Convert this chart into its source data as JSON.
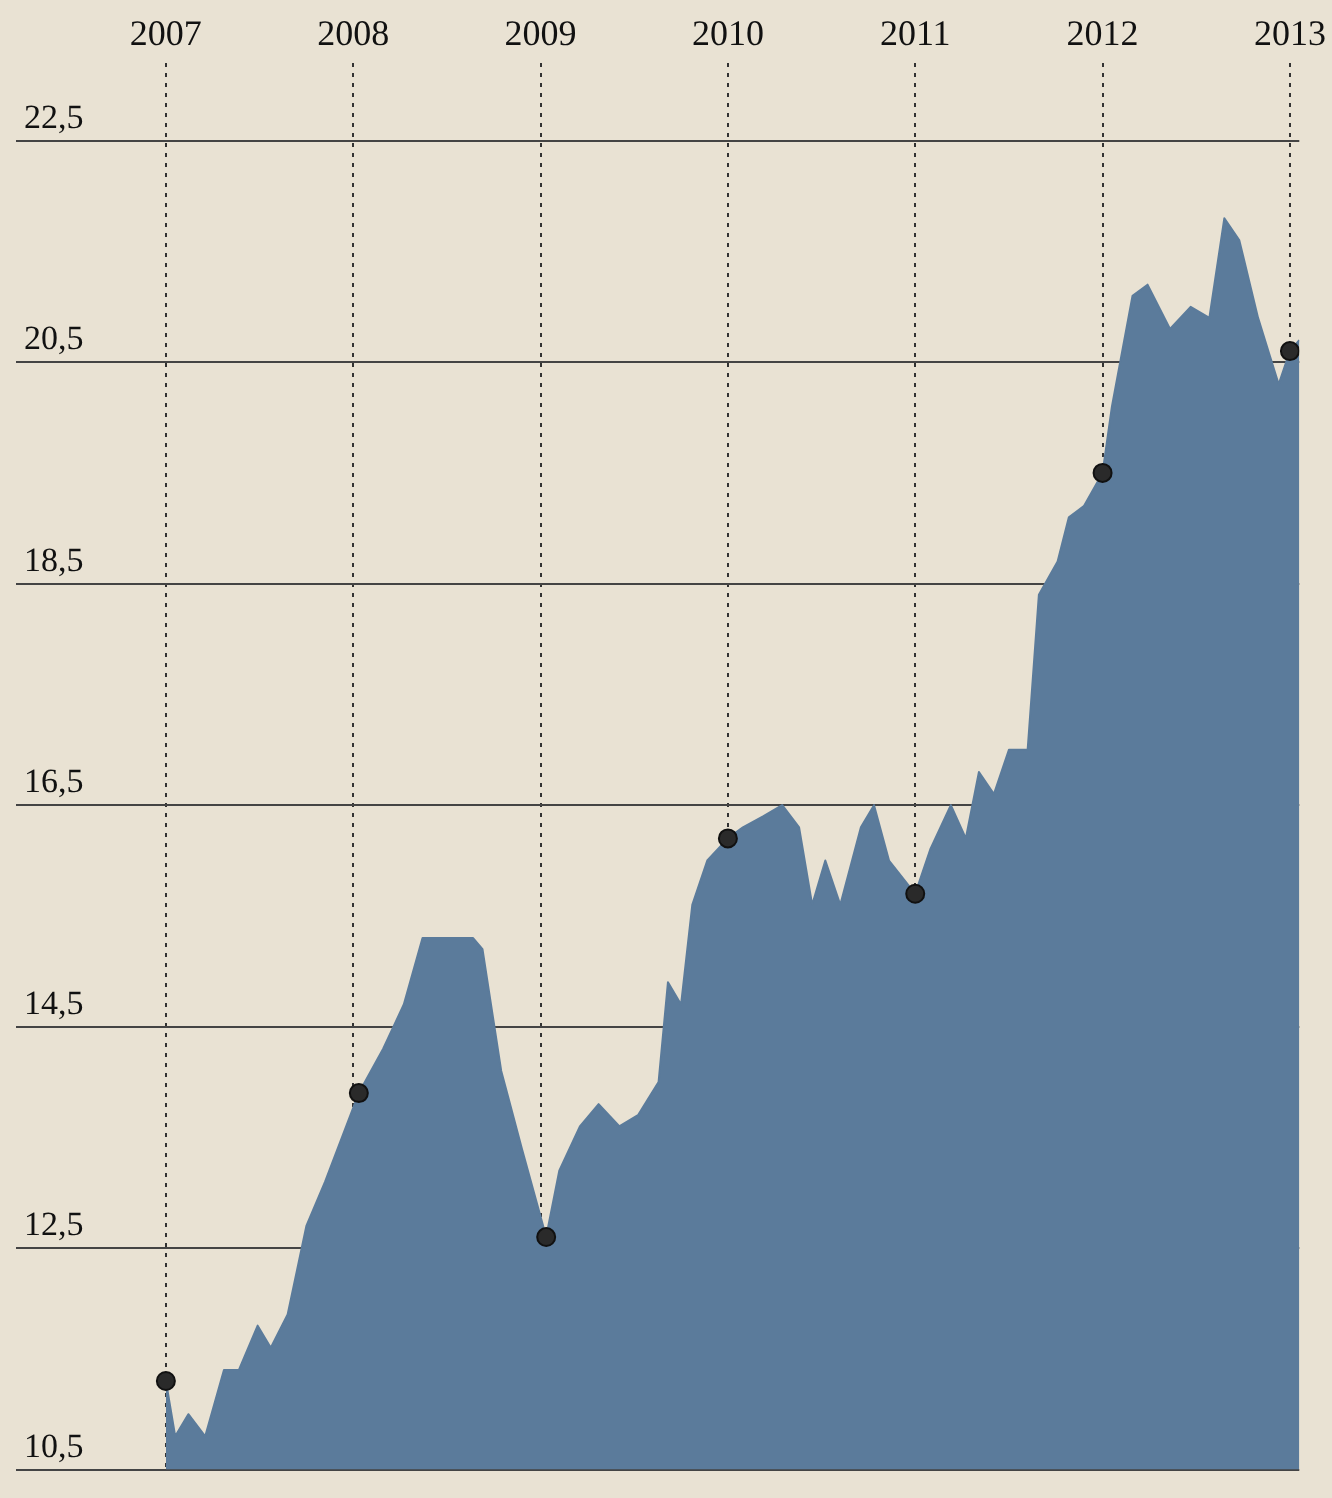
{
  "chart_data": {
    "type": "area",
    "xlim": [
      2006.2,
      2013.05
    ],
    "xticks": [
      2007,
      2008,
      2009,
      2010,
      2011,
      2012,
      2013
    ],
    "ylim": [
      10.5,
      23.2
    ],
    "yticks": [
      {
        "value": 10.5,
        "label": "10,5"
      },
      {
        "value": 12.5,
        "label": "12,5"
      },
      {
        "value": 14.5,
        "label": "14,5"
      },
      {
        "value": 16.5,
        "label": "16,5"
      },
      {
        "value": 18.5,
        "label": "18,5"
      },
      {
        "value": 20.5,
        "label": "20,5"
      },
      {
        "value": 22.5,
        "label": "22,5"
      }
    ],
    "grid": true,
    "legend": false,
    "series": [
      {
        "color": "#5b7b9b",
        "x": [
          2007.0,
          2007.05,
          2007.12,
          2007.21,
          2007.31,
          2007.39,
          2007.49,
          2007.56,
          2007.65,
          2007.75,
          2007.85,
          2008.03,
          2008.16,
          2008.27,
          2008.37,
          2008.48,
          2008.64,
          2008.69,
          2008.79,
          2008.9,
          2009.03,
          2009.1,
          2009.21,
          2009.31,
          2009.42,
          2009.52,
          2009.63,
          2009.68,
          2009.75,
          2009.81,
          2009.89,
          2010.0,
          2010.08,
          2010.19,
          2010.29,
          2010.38,
          2010.45,
          2010.52,
          2010.6,
          2010.71,
          2010.78,
          2010.86,
          2011.0,
          2011.08,
          2011.19,
          2011.27,
          2011.34,
          2011.42,
          2011.5,
          2011.6,
          2011.66,
          2011.76,
          2011.82,
          2011.9,
          2012.0,
          2012.05,
          2012.16,
          2012.24,
          2012.36,
          2012.47,
          2012.57,
          2012.65,
          2012.73,
          2012.83,
          2012.94,
          2013.0,
          2013.05
        ],
        "values": [
          11.3,
          10.8,
          11.0,
          10.8,
          11.4,
          11.4,
          11.8,
          11.6,
          11.9,
          12.7,
          13.1,
          13.9,
          14.3,
          14.7,
          15.3,
          15.3,
          15.3,
          15.2,
          14.1,
          13.4,
          12.6,
          13.2,
          13.6,
          13.8,
          13.6,
          13.7,
          14.0,
          14.9,
          14.7,
          15.6,
          16.0,
          16.2,
          16.3,
          16.4,
          16.5,
          16.3,
          15.6,
          16.0,
          15.6,
          16.3,
          16.5,
          16.0,
          15.7,
          16.1,
          16.5,
          16.2,
          16.8,
          16.6,
          17.0,
          17.0,
          18.4,
          18.7,
          19.1,
          19.2,
          19.5,
          20.1,
          21.1,
          21.2,
          20.8,
          21.0,
          20.9,
          21.8,
          21.6,
          20.9,
          20.3,
          20.6,
          20.7
        ]
      },
      {
        "type": "scatter",
        "color": "#2a2a2a",
        "marker": "circle",
        "x": [
          2007.0,
          2008.03,
          2009.03,
          2010.0,
          2011.0,
          2012.0,
          2013.0
        ],
        "values": [
          11.3,
          13.9,
          12.6,
          16.2,
          15.7,
          19.5,
          20.6
        ]
      }
    ]
  }
}
